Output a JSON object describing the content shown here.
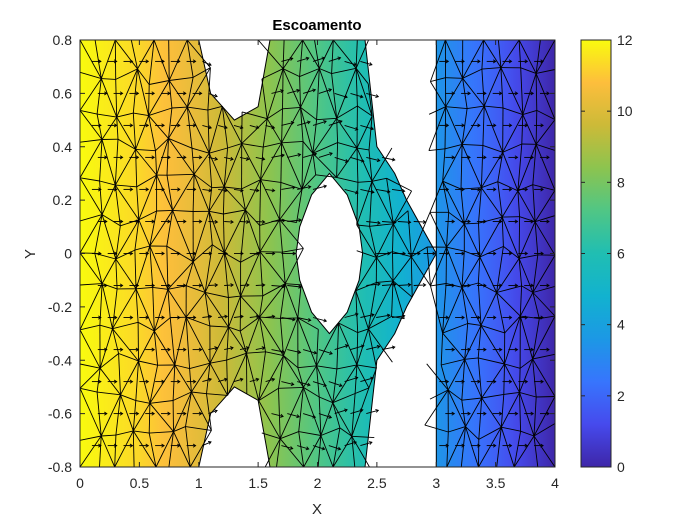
{
  "chart_data": {
    "type": "heatmap",
    "subtype": "triangular-mesh-potential-flow-with-velocity-arrows",
    "title": "Escoamento",
    "xlabel": "X",
    "ylabel": "Y",
    "xlim": [
      0,
      4
    ],
    "ylim": [
      -0.8,
      0.8
    ],
    "xticks": [
      "0",
      "0.5",
      "1",
      "1.5",
      "2",
      "2.5",
      "3",
      "3.5",
      "4"
    ],
    "yticks": [
      "-0.8",
      "-0.6",
      "-0.4",
      "-0.2",
      "0",
      "0.2",
      "0.4",
      "0.6",
      "0.8"
    ],
    "colorbar": {
      "range": [
        0,
        12
      ],
      "ticks": [
        "0",
        "2",
        "4",
        "6",
        "8",
        "10",
        "12"
      ],
      "colormap": "parula"
    },
    "field": {
      "description": "scalar potential, approx. 12 at x=0 decreasing to 0 at x=4",
      "x": [
        0,
        0.5,
        1,
        1.5,
        2,
        2.5,
        3,
        3.5,
        4
      ],
      "values": [
        12,
        11.3,
        10.2,
        8.7,
        7.2,
        5.6,
        3.5,
        1.8,
        0
      ]
    },
    "domain_outline": [
      [
        0,
        0.8
      ],
      [
        1,
        0.8
      ],
      [
        1.1,
        0.6
      ],
      [
        1.3,
        0.5
      ],
      [
        1.5,
        0.55
      ],
      [
        1.6,
        0.8
      ],
      [
        2.4,
        0.8
      ],
      [
        2.5,
        0.4
      ],
      [
        2.65,
        0.3
      ],
      [
        2.75,
        0.2
      ],
      [
        3,
        0
      ],
      [
        3,
        0.8
      ],
      [
        4,
        0.8
      ],
      [
        4,
        -0.8
      ],
      [
        3,
        -0.8
      ],
      [
        3,
        0
      ],
      [
        2.75,
        -0.2
      ],
      [
        2.65,
        -0.3
      ],
      [
        2.5,
        -0.4
      ],
      [
        2.4,
        -0.8
      ],
      [
        1.6,
        -0.8
      ],
      [
        1.5,
        -0.55
      ],
      [
        1.3,
        -0.5
      ],
      [
        1.1,
        -0.6
      ],
      [
        1,
        -0.8
      ],
      [
        0,
        -0.8
      ]
    ],
    "hole_outline": [
      [
        2.1,
        0.3
      ],
      [
        2.25,
        0.22
      ],
      [
        2.35,
        0.1
      ],
      [
        2.38,
        0
      ],
      [
        2.35,
        -0.1
      ],
      [
        2.25,
        -0.22
      ],
      [
        2.1,
        -0.3
      ],
      [
        1.95,
        -0.22
      ],
      [
        1.85,
        -0.1
      ],
      [
        1.82,
        0
      ],
      [
        1.85,
        0.1
      ],
      [
        1.95,
        0.22
      ]
    ],
    "flow_direction": "positive x"
  }
}
